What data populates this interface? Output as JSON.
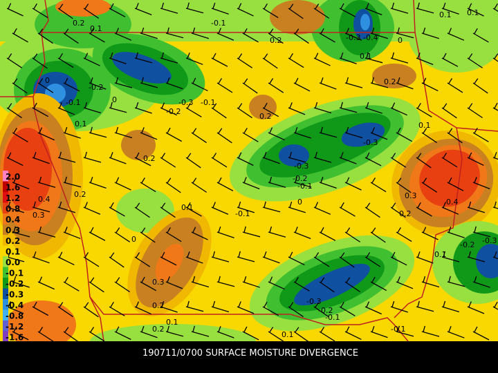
{
  "caption": "190711/0700 SURFACE MOISTURE DIVERGENCE",
  "legend": {
    "items": [
      {
        "label": "2.0",
        "color": "#ff80c0"
      },
      {
        "label": "1.6",
        "color": "#c00000"
      },
      {
        "label": "1.2",
        "color": "#e01010"
      },
      {
        "label": "0.8",
        "color": "#e84010"
      },
      {
        "label": "0.4",
        "color": "#f07818"
      },
      {
        "label": "0.3",
        "color": "#c88020"
      },
      {
        "label": "0.2",
        "color": "#f0b800"
      },
      {
        "label": "0.1",
        "color": "#f8d800"
      },
      {
        "label": "0.0",
        "color": "#98e040"
      },
      {
        "label": "-0.1",
        "color": "#40c030"
      },
      {
        "label": "-0.2",
        "color": "#109818"
      },
      {
        "label": "-0.3",
        "color": "#1050a0"
      },
      {
        "label": "-0.4",
        "color": "#3090e0"
      },
      {
        "label": "-0.8",
        "color": "#40b0f0"
      },
      {
        "label": "-1.2",
        "color": "#6060d0"
      },
      {
        "label": "-1.6",
        "color": "#8040c0"
      }
    ]
  },
  "contour_labels": [
    "0.2",
    "0.1",
    "-0.1",
    "0.2",
    "-0.3",
    "-0.4",
    "0.1",
    "0.1",
    "0",
    "0.1",
    "0.2",
    "0",
    "-0.2",
    "-0.1",
    "0.1",
    "0",
    "-0.2",
    "-0.3",
    "-0.1",
    "0.2",
    "0.1",
    "-0.3",
    "0.2",
    "-0.3",
    "-0.2",
    "-0.1",
    "0",
    "0.2",
    "0.4",
    "0.3",
    "0.1",
    "-0.1",
    "0.3",
    "0.4",
    "0.2",
    "0",
    "0.3",
    "0.2",
    "-0.3",
    "-0.2",
    "-0.1",
    "0.1",
    "-0.1",
    "0.2",
    "0.1",
    "0.1",
    "-0.2",
    "-0.3"
  ]
}
